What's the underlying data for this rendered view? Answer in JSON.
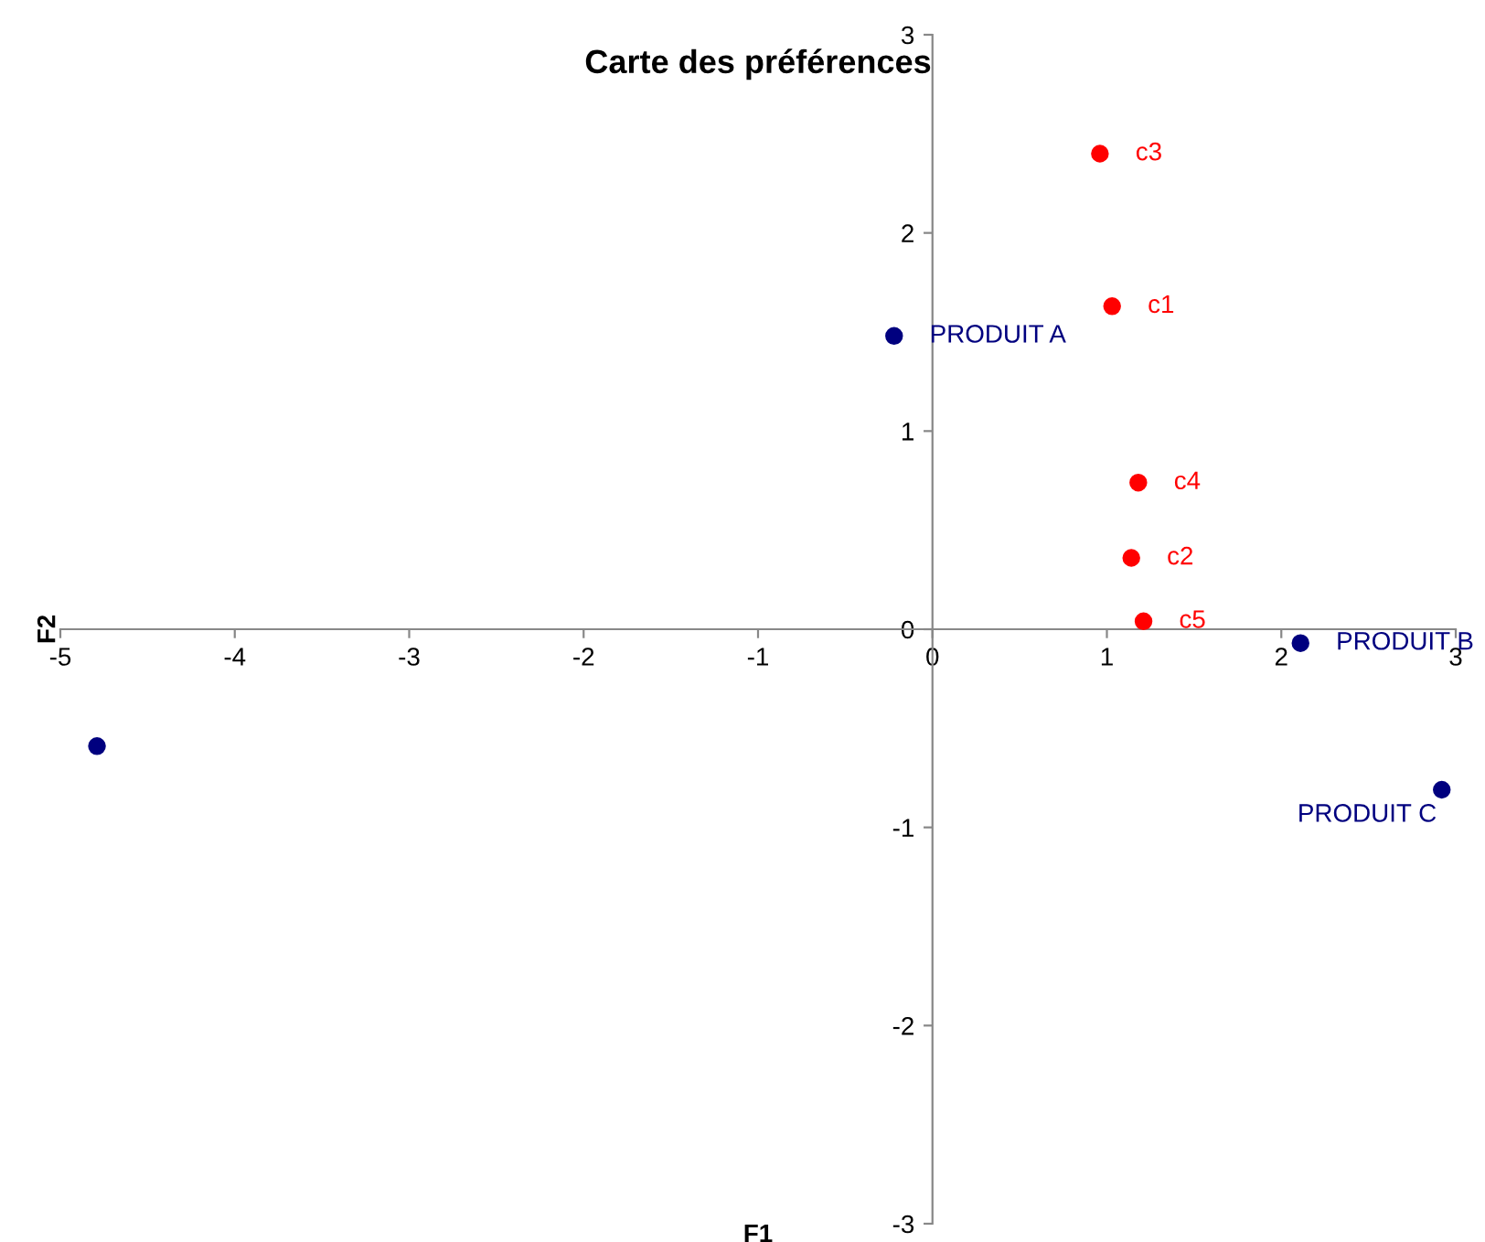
{
  "chart_data": {
    "type": "scatter",
    "title": "Carte des préférences",
    "xlabel": "F1",
    "ylabel": "F2",
    "series": [
      {
        "color": "#ff0000",
        "x": [
          0.96,
          1.03,
          1.18,
          1.14,
          1.21
        ],
        "values": [
          2.4,
          1.63,
          0.74,
          0.36,
          0.04
        ]
      },
      {
        "color": "#00007f",
        "x": [
          -0.22,
          2.11,
          2.92,
          -4.79
        ],
        "values": [
          1.48,
          -0.07,
          -0.81,
          -0.59
        ]
      }
    ],
    "annotations": [
      {
        "text": "c3",
        "x": 0.96,
        "y": 2.4
      },
      {
        "text": "c1",
        "x": 1.03,
        "y": 1.63
      },
      {
        "text": "c4",
        "x": 1.18,
        "y": 0.74
      },
      {
        "text": "c2",
        "x": 1.14,
        "y": 0.36
      },
      {
        "text": "c5",
        "x": 1.21,
        "y": 0.04
      },
      {
        "text": "PRODUIT A",
        "x": -0.22,
        "y": 1.48
      },
      {
        "text": "PRODUIT B",
        "x": 2.11,
        "y": -0.07
      },
      {
        "text": "PRODUIT C",
        "x": 2.92,
        "y": -0.81
      }
    ],
    "xlim": [
      -5,
      3
    ],
    "ylim": [
      -3,
      3
    ],
    "xticks": [
      -5,
      -4,
      -3,
      -2,
      -1,
      0,
      1,
      2,
      3
    ],
    "yticks": [
      -3,
      -2,
      -1,
      0,
      1,
      2,
      3
    ],
    "marker": "circle",
    "grid": false,
    "legend": false
  }
}
